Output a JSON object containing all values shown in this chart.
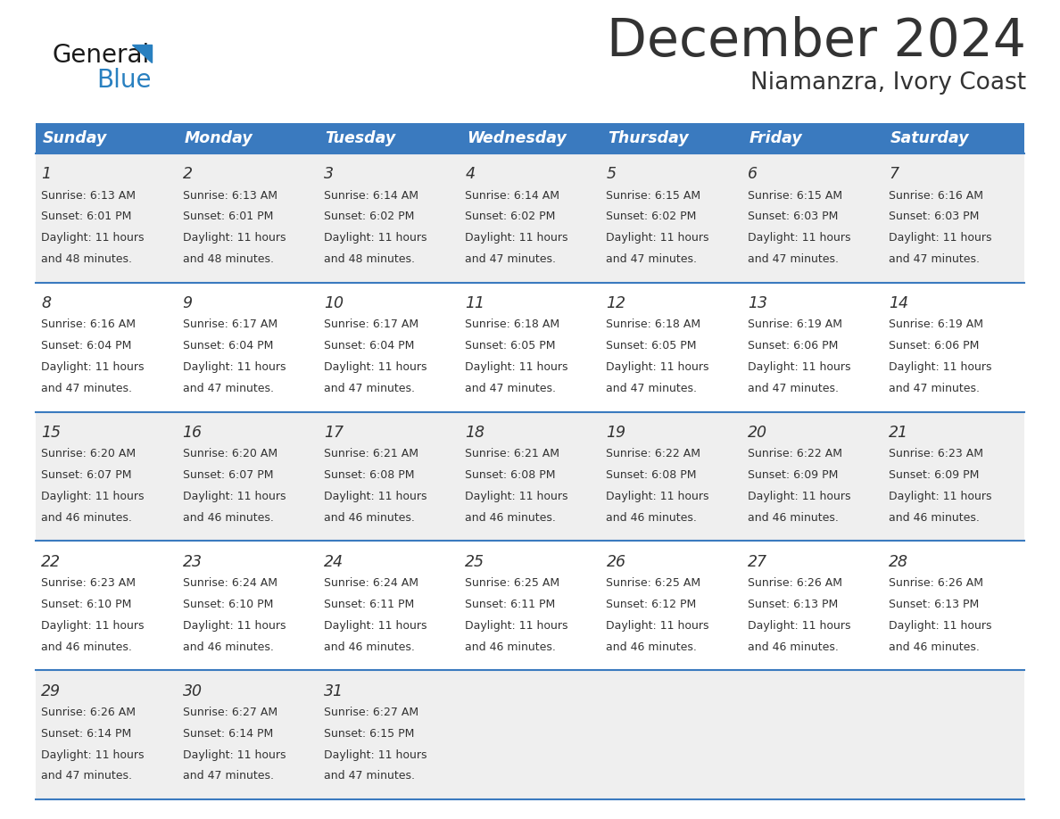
{
  "title": "December 2024",
  "subtitle": "Niamanzra, Ivory Coast",
  "header_color": "#3a7abf",
  "header_text_color": "#ffffff",
  "days_of_week": [
    "Sunday",
    "Monday",
    "Tuesday",
    "Wednesday",
    "Thursday",
    "Friday",
    "Saturday"
  ],
  "background_color": "#ffffff",
  "cell_bg_even": "#efefef",
  "cell_bg_odd": "#ffffff",
  "row_line_color": "#3a7abf",
  "text_color": "#333333",
  "calendar_data": [
    [
      {
        "day": 1,
        "sunrise": "6:13 AM",
        "sunset": "6:01 PM",
        "daylight_hours": 11,
        "daylight_minutes": 48
      },
      {
        "day": 2,
        "sunrise": "6:13 AM",
        "sunset": "6:01 PM",
        "daylight_hours": 11,
        "daylight_minutes": 48
      },
      {
        "day": 3,
        "sunrise": "6:14 AM",
        "sunset": "6:02 PM",
        "daylight_hours": 11,
        "daylight_minutes": 48
      },
      {
        "day": 4,
        "sunrise": "6:14 AM",
        "sunset": "6:02 PM",
        "daylight_hours": 11,
        "daylight_minutes": 47
      },
      {
        "day": 5,
        "sunrise": "6:15 AM",
        "sunset": "6:02 PM",
        "daylight_hours": 11,
        "daylight_minutes": 47
      },
      {
        "day": 6,
        "sunrise": "6:15 AM",
        "sunset": "6:03 PM",
        "daylight_hours": 11,
        "daylight_minutes": 47
      },
      {
        "day": 7,
        "sunrise": "6:16 AM",
        "sunset": "6:03 PM",
        "daylight_hours": 11,
        "daylight_minutes": 47
      }
    ],
    [
      {
        "day": 8,
        "sunrise": "6:16 AM",
        "sunset": "6:04 PM",
        "daylight_hours": 11,
        "daylight_minutes": 47
      },
      {
        "day": 9,
        "sunrise": "6:17 AM",
        "sunset": "6:04 PM",
        "daylight_hours": 11,
        "daylight_minutes": 47
      },
      {
        "day": 10,
        "sunrise": "6:17 AM",
        "sunset": "6:04 PM",
        "daylight_hours": 11,
        "daylight_minutes": 47
      },
      {
        "day": 11,
        "sunrise": "6:18 AM",
        "sunset": "6:05 PM",
        "daylight_hours": 11,
        "daylight_minutes": 47
      },
      {
        "day": 12,
        "sunrise": "6:18 AM",
        "sunset": "6:05 PM",
        "daylight_hours": 11,
        "daylight_minutes": 47
      },
      {
        "day": 13,
        "sunrise": "6:19 AM",
        "sunset": "6:06 PM",
        "daylight_hours": 11,
        "daylight_minutes": 47
      },
      {
        "day": 14,
        "sunrise": "6:19 AM",
        "sunset": "6:06 PM",
        "daylight_hours": 11,
        "daylight_minutes": 47
      }
    ],
    [
      {
        "day": 15,
        "sunrise": "6:20 AM",
        "sunset": "6:07 PM",
        "daylight_hours": 11,
        "daylight_minutes": 46
      },
      {
        "day": 16,
        "sunrise": "6:20 AM",
        "sunset": "6:07 PM",
        "daylight_hours": 11,
        "daylight_minutes": 46
      },
      {
        "day": 17,
        "sunrise": "6:21 AM",
        "sunset": "6:08 PM",
        "daylight_hours": 11,
        "daylight_minutes": 46
      },
      {
        "day": 18,
        "sunrise": "6:21 AM",
        "sunset": "6:08 PM",
        "daylight_hours": 11,
        "daylight_minutes": 46
      },
      {
        "day": 19,
        "sunrise": "6:22 AM",
        "sunset": "6:08 PM",
        "daylight_hours": 11,
        "daylight_minutes": 46
      },
      {
        "day": 20,
        "sunrise": "6:22 AM",
        "sunset": "6:09 PM",
        "daylight_hours": 11,
        "daylight_minutes": 46
      },
      {
        "day": 21,
        "sunrise": "6:23 AM",
        "sunset": "6:09 PM",
        "daylight_hours": 11,
        "daylight_minutes": 46
      }
    ],
    [
      {
        "day": 22,
        "sunrise": "6:23 AM",
        "sunset": "6:10 PM",
        "daylight_hours": 11,
        "daylight_minutes": 46
      },
      {
        "day": 23,
        "sunrise": "6:24 AM",
        "sunset": "6:10 PM",
        "daylight_hours": 11,
        "daylight_minutes": 46
      },
      {
        "day": 24,
        "sunrise": "6:24 AM",
        "sunset": "6:11 PM",
        "daylight_hours": 11,
        "daylight_minutes": 46
      },
      {
        "day": 25,
        "sunrise": "6:25 AM",
        "sunset": "6:11 PM",
        "daylight_hours": 11,
        "daylight_minutes": 46
      },
      {
        "day": 26,
        "sunrise": "6:25 AM",
        "sunset": "6:12 PM",
        "daylight_hours": 11,
        "daylight_minutes": 46
      },
      {
        "day": 27,
        "sunrise": "6:26 AM",
        "sunset": "6:13 PM",
        "daylight_hours": 11,
        "daylight_minutes": 46
      },
      {
        "day": 28,
        "sunrise": "6:26 AM",
        "sunset": "6:13 PM",
        "daylight_hours": 11,
        "daylight_minutes": 46
      }
    ],
    [
      {
        "day": 29,
        "sunrise": "6:26 AM",
        "sunset": "6:14 PM",
        "daylight_hours": 11,
        "daylight_minutes": 47
      },
      {
        "day": 30,
        "sunrise": "6:27 AM",
        "sunset": "6:14 PM",
        "daylight_hours": 11,
        "daylight_minutes": 47
      },
      {
        "day": 31,
        "sunrise": "6:27 AM",
        "sunset": "6:15 PM",
        "daylight_hours": 11,
        "daylight_minutes": 47
      },
      null,
      null,
      null,
      null
    ]
  ],
  "logo_color_general": "#1a1a1a",
  "logo_color_blue": "#2980c0",
  "logo_color_triangle": "#2980c0"
}
